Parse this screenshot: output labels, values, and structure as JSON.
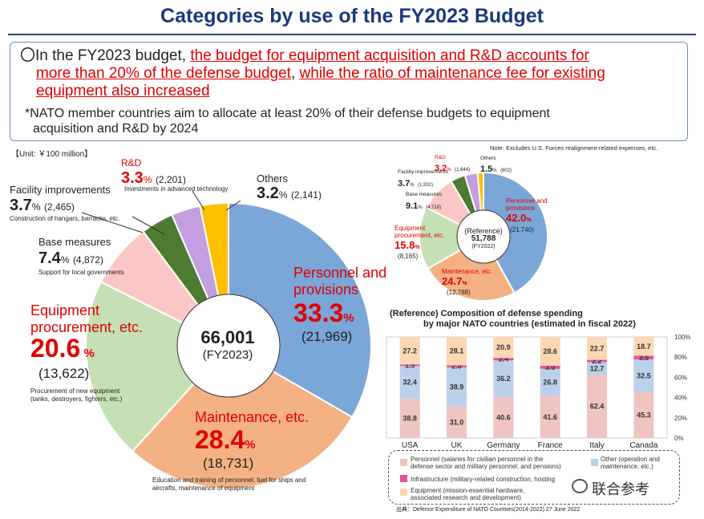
{
  "header": {
    "title": "Categories by use of the FY2023 Budget"
  },
  "summary": {
    "bullet": "〇",
    "line1_prefix": "In the FY2023 budget, ",
    "line1_red": "the budget for equipment acquisition and R&D accounts for",
    "line2_red_a": "more than 20% of the defense budget",
    "line2_sep": ", ",
    "line2_red_b": "while the ratio of maintenance fee for existing",
    "line3_red": "equipment also increased",
    "note1": "*NATO member countries aim to allocate at least 20% of their defense budgets to equipment",
    "note2": "acquisition and R&D by 2024"
  },
  "unit_label": "【Unit: ￥100 million】",
  "main_note": "Note: Excludes U.S. Forces realignment-related expenses, etc.",
  "colors": {
    "personnel": "#7aa6d8",
    "maintenance": "#f4b183",
    "equipment": "#c5e0b4",
    "base": "#fbc7c7",
    "facility": "#4e7a32",
    "rnd": "#c39ee0",
    "others": "#ffc000",
    "accent_red": "#e00000",
    "title_blue": "#1a3a7a",
    "nato_personnel": "#f0c4c0",
    "nato_infra": "#e0559a",
    "nato_other": "#bcd0ea",
    "nato_equipment": "#fcd7b4"
  },
  "chart_data": [
    {
      "type": "pie",
      "title": "FY2023",
      "center_total": "66,001",
      "center_label": "(FY2023)",
      "slices": [
        {
          "key": "personnel",
          "name1": "Personnel and",
          "name2": "provisions",
          "pct": 33.3,
          "pct_text": "33.3",
          "amount": 21969,
          "amount_text": "(21,969)",
          "desc": ""
        },
        {
          "key": "maintenance",
          "name1": "Maintenance, etc.",
          "name2": "",
          "pct": 28.4,
          "pct_text": "28.4",
          "amount": 18731,
          "amount_text": "(18,731)",
          "desc1": "Education and training of personnel, fuel for ships and",
          "desc2": "aircrafts, maintenance of equipment"
        },
        {
          "key": "equipment",
          "name1": "Equipment",
          "name2": "procurement, etc.",
          "pct": 20.6,
          "pct_text": "20.6",
          "amount": 13622,
          "amount_text": "(13,622)",
          "desc1": "Procurement of new equipment",
          "desc2": "(tanks, destroyers, fighters, etc.)"
        },
        {
          "key": "base",
          "name1": "Base measures",
          "pct": 7.4,
          "pct_text": "7.4",
          "amount": 4872,
          "amount_text": "(4,872)",
          "desc1": "Support for local governments"
        },
        {
          "key": "facility",
          "name1": "Facility improvements",
          "pct": 3.7,
          "pct_text": "3.7",
          "amount": 2465,
          "amount_text": "(2,465)",
          "desc1": "Construction of hangars, barracks, etc."
        },
        {
          "key": "rnd",
          "name1": "R&D",
          "pct": 3.3,
          "pct_text": "3.3",
          "amount": 2201,
          "amount_text": "(2,201)",
          "desc1": "Investments in advanced technology"
        },
        {
          "key": "others",
          "name1": "Others",
          "pct": 3.2,
          "pct_text": "3.2",
          "amount": 2141,
          "amount_text": "(2,141)"
        }
      ]
    },
    {
      "type": "pie",
      "title": "(Reference)",
      "center_total": "51,788",
      "center_label": "(FY2022)",
      "slices": [
        {
          "key": "personnel",
          "name1": "Personnel and",
          "name2": "provisions",
          "pct": 42.0,
          "pct_text": "42.0",
          "amount": 21740,
          "amount_text": "(21,740)"
        },
        {
          "key": "maintenance",
          "name1": "Maintenance, etc.",
          "pct": 24.7,
          "pct_text": "24.7",
          "amount": 12788,
          "amount_text": "(12,788)"
        },
        {
          "key": "equipment",
          "name1": "Equipment",
          "name2": "procurement, etc.",
          "pct": 15.8,
          "pct_text": "15.8",
          "amount": 8165,
          "amount_text": "(8,165)"
        },
        {
          "key": "base",
          "name1": "Base measures",
          "pct": 9.1,
          "pct_text": "9.1",
          "amount": 4718,
          "amount_text": "(4,718)"
        },
        {
          "key": "facility",
          "name1": "Facility improvements",
          "pct": 3.7,
          "pct_text": "3.7",
          "amount": 1932,
          "amount_text": "(1,932)"
        },
        {
          "key": "rnd",
          "name1": "R&D",
          "pct": 3.2,
          "pct_text": "3.2",
          "amount": 1644,
          "amount_text": "(1,644)"
        },
        {
          "key": "others",
          "name1": "Others",
          "pct": 1.5,
          "pct_text": "1.5",
          "amount": 802,
          "amount_text": "(802)"
        }
      ]
    },
    {
      "type": "bar",
      "stacked": true,
      "title1": "(Reference) Composition of defense spending",
      "title2": "by major NATO countries (estimated in fiscal 2022)",
      "categories": [
        "USA",
        "UK",
        "Germany",
        "France",
        "Italy",
        "Canada"
      ],
      "yticks": [
        "0%",
        "20%",
        "40%",
        "60%",
        "80%",
        "100%"
      ],
      "ylim": [
        0,
        100
      ],
      "series": [
        {
          "key": "nato_personnel",
          "values": [
            38.8,
            31.0,
            40.6,
            41.6,
            62.4,
            45.3
          ]
        },
        {
          "key": "nato_other",
          "values": [
            32.4,
            38.9,
            36.2,
            26.8,
            12.7,
            32.5
          ]
        },
        {
          "key": "nato_infra",
          "values": [
            1.5,
            2.0,
            2.4,
            3.0,
            2.2,
            3.5
          ]
        },
        {
          "key": "nato_equipment",
          "values": [
            27.2,
            28.1,
            20.9,
            28.6,
            22.7,
            18.7
          ]
        }
      ],
      "legend": {
        "personnel1": "Personnel (salaries for civilian personnel in the",
        "personnel2": "defense sector and military personnel, and pensions)",
        "other1": "Other (operation and",
        "other2": "maintenance, etc.)",
        "infra": "Infrastructure (military-related construction, hosting",
        "equipment1": "Equipment (mission-essential hardware,",
        "equipment2": "associated research and development)"
      },
      "source": "出典：Defence Expenditure of NATO Countries(2014-2022) 27 June 2022"
    }
  ],
  "watermark": "联合参考"
}
